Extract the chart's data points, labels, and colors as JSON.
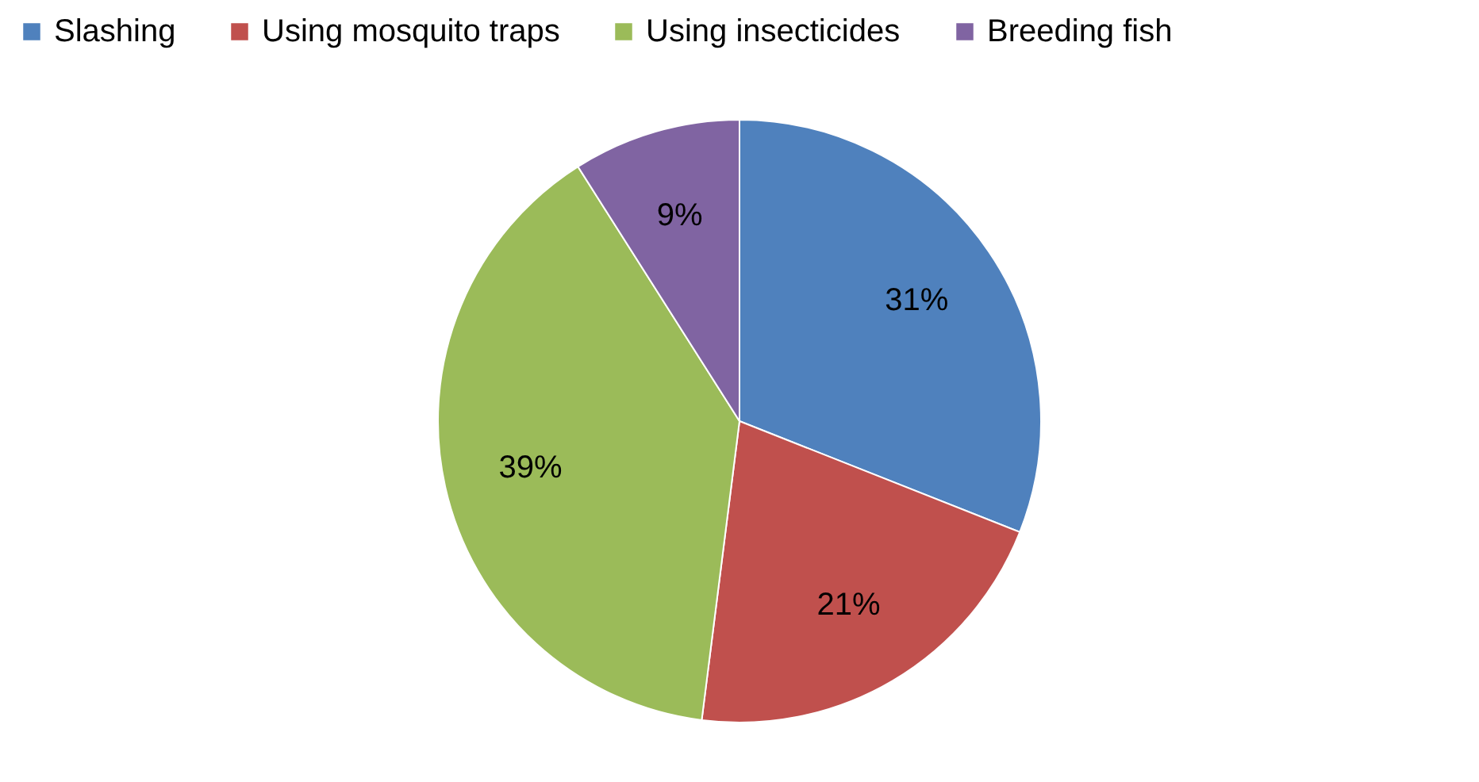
{
  "chart_data": {
    "type": "pie",
    "categories": [
      "Slashing",
      "Using mosquito traps",
      "Using insecticides",
      "Breeding fish"
    ],
    "values": [
      31,
      21,
      39,
      9
    ],
    "colors": [
      "#4f81bd",
      "#c0504d",
      "#9bbb59",
      "#8064a2"
    ],
    "value_labels": [
      "31%",
      "21%",
      "39%",
      "9%"
    ],
    "legend": "top"
  }
}
